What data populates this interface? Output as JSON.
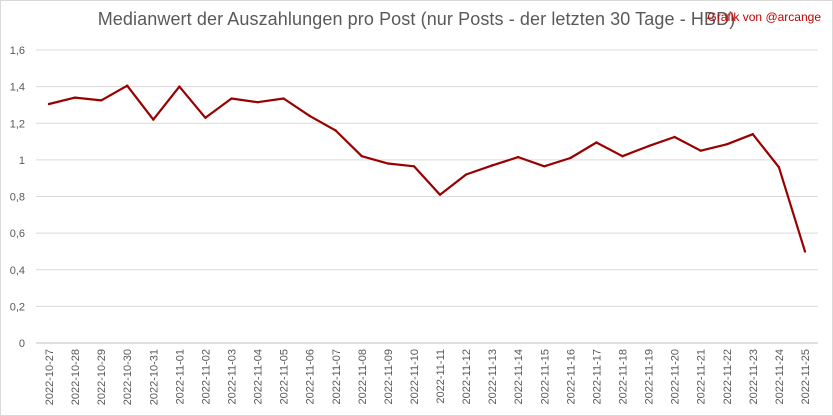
{
  "chart": {
    "title": "Medianwert der Auszahlungen pro Post (nur Posts - der letzten 30 Tage - HBD)",
    "credit": "Grafik von @arcange"
  },
  "chart_data": {
    "type": "line",
    "title": "Medianwert der Auszahlungen pro Post (nur Posts - der letzten 30 Tage - HBD)",
    "xlabel": "",
    "ylabel": "",
    "ylim": [
      0,
      1.6
    ],
    "yticks": [
      "0",
      "0,2",
      "0,4",
      "0,6",
      "0,8",
      "1",
      "1,2",
      "1,4",
      "1,6"
    ],
    "grid": true,
    "legend": "none",
    "line_color": "#990000",
    "categories": [
      "2022-10-27",
      "2022-10-28",
      "2022-10-29",
      "2022-10-30",
      "2022-10-31",
      "2022-11-01",
      "2022-11-02",
      "2022-11-03",
      "2022-11-04",
      "2022-11-05",
      "2022-11-06",
      "2022-11-07",
      "2022-11-08",
      "2022-11-09",
      "2022-11-10",
      "2022-11-11",
      "2022-11-12",
      "2022-11-13",
      "2022-11-14",
      "2022-11-15",
      "2022-11-16",
      "2022-11-17",
      "2022-11-18",
      "2022-11-19",
      "2022-11-20",
      "2022-11-21",
      "2022-11-22",
      "2022-11-23",
      "2022-11-24",
      "2022-11-25"
    ],
    "series": [
      {
        "name": "",
        "values": [
          1.305,
          1.34,
          1.325,
          1.405,
          1.22,
          1.4,
          1.23,
          1.335,
          1.315,
          1.335,
          1.24,
          1.16,
          1.02,
          0.98,
          0.965,
          0.81,
          0.92,
          0.97,
          1.015,
          0.965,
          1.01,
          1.095,
          1.02,
          1.075,
          1.125,
          1.05,
          1.085,
          1.14,
          0.96,
          0.5
        ]
      }
    ]
  }
}
